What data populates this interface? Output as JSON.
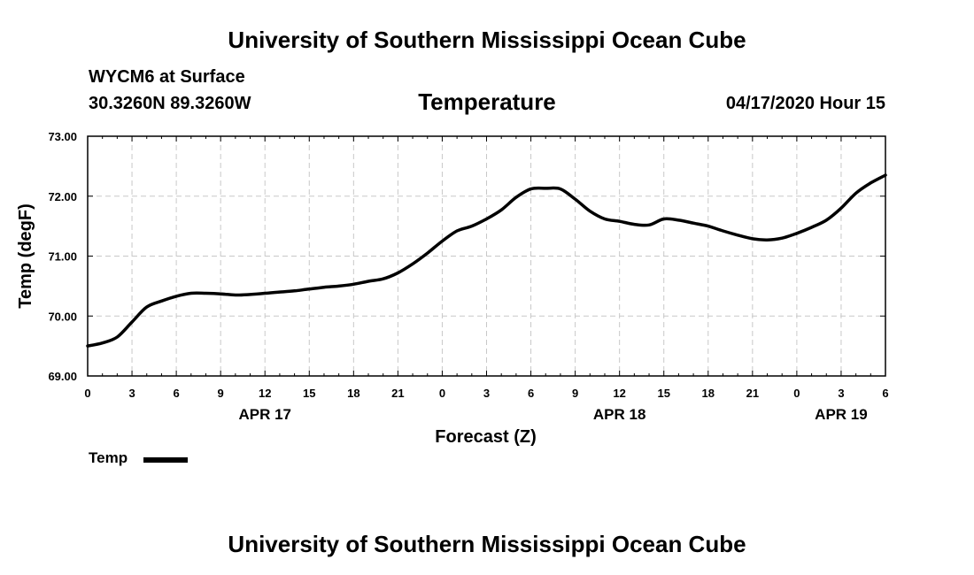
{
  "header": {
    "title": "University of Southern Mississippi Ocean Cube",
    "station": "WYCM6 at Surface",
    "coordinates": "30.3260N 89.3260W",
    "timestamp": "04/17/2020 Hour 15"
  },
  "footer": {
    "title": "University of Southern Mississippi Ocean Cube"
  },
  "colors": {
    "line": "#000000",
    "grid": "#c8c8c8",
    "background": "#ffffff"
  },
  "chart_data": {
    "type": "line",
    "title": "Temperature",
    "xlabel": "Forecast (Z)",
    "ylabel": "Temp (degF)",
    "xlim": [
      0,
      54
    ],
    "ylim": [
      69.0,
      73.0
    ],
    "x_tick_values": [
      0,
      3,
      6,
      9,
      12,
      15,
      18,
      21,
      24,
      27,
      30,
      33,
      36,
      39,
      42,
      45,
      48,
      51,
      54
    ],
    "x_tick_labels": [
      "0",
      "3",
      "6",
      "9",
      "12",
      "15",
      "18",
      "21",
      "0",
      "3",
      "6",
      "9",
      "12",
      "15",
      "18",
      "21",
      "0",
      "3",
      "6"
    ],
    "y_tick_values": [
      69.0,
      70.0,
      71.0,
      72.0,
      73.0
    ],
    "y_tick_labels": [
      "69.00",
      "70.00",
      "71.00",
      "72.00",
      "73.00"
    ],
    "date_labels": [
      {
        "label": "APR 17",
        "x": 12
      },
      {
        "label": "APR 18",
        "x": 36
      },
      {
        "label": "APR 19",
        "x": 51
      }
    ],
    "grid": true,
    "legend": {
      "position": "bottom-left",
      "entries": [
        "Temp"
      ]
    },
    "series": [
      {
        "name": "Temp",
        "x": [
          0,
          1,
          2,
          3,
          4,
          5,
          6,
          7,
          8,
          9,
          10,
          11,
          12,
          13,
          14,
          15,
          16,
          17,
          18,
          19,
          20,
          21,
          22,
          23,
          24,
          25,
          26,
          27,
          28,
          29,
          30,
          31,
          32,
          33,
          34,
          35,
          36,
          37,
          38,
          39,
          40,
          41,
          42,
          43,
          44,
          45,
          46,
          47,
          48,
          49,
          50,
          51,
          52,
          53,
          54
        ],
        "values": [
          69.5,
          69.55,
          69.65,
          69.9,
          70.15,
          70.25,
          70.33,
          70.38,
          70.38,
          70.37,
          70.35,
          70.36,
          70.38,
          70.4,
          70.42,
          70.45,
          70.48,
          70.5,
          70.53,
          70.58,
          70.62,
          70.72,
          70.87,
          71.05,
          71.25,
          71.42,
          71.5,
          71.62,
          71.77,
          71.98,
          72.12,
          72.13,
          72.12,
          71.95,
          71.75,
          71.62,
          71.58,
          71.53,
          71.52,
          71.62,
          71.6,
          71.55,
          71.5,
          71.42,
          71.35,
          71.29,
          71.27,
          71.3,
          71.38,
          71.48,
          71.6,
          71.8,
          72.05,
          72.22,
          72.35
        ]
      }
    ]
  }
}
